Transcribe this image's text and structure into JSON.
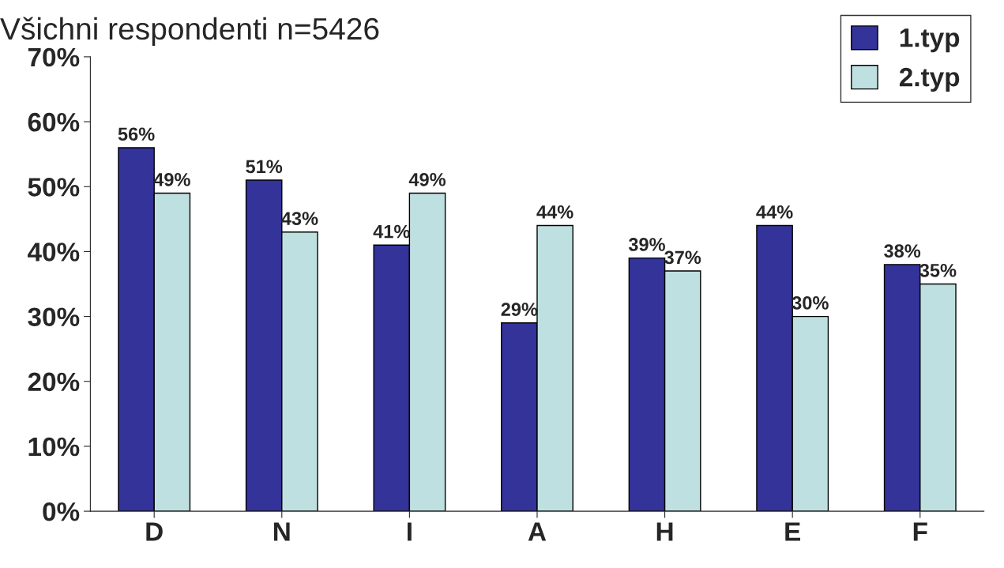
{
  "chart_data": {
    "type": "bar",
    "title": "Všichni respondenti n=5426",
    "categories": [
      "D",
      "N",
      "I",
      "A",
      "H",
      "E",
      "F"
    ],
    "series": [
      {
        "name": "1.typ",
        "color": "#333399",
        "values": [
          56,
          51,
          41,
          29,
          39,
          44,
          38
        ]
      },
      {
        "name": "2.typ",
        "color": "#bfe0e0",
        "values": [
          49,
          43,
          49,
          44,
          37,
          30,
          35
        ]
      }
    ],
    "ylim": [
      0,
      70
    ],
    "yticks": [
      {
        "value": 0,
        "label": "0%"
      },
      {
        "value": 10,
        "label": "10%"
      },
      {
        "value": 20,
        "label": "20%"
      },
      {
        "value": 30,
        "label": "30%"
      },
      {
        "value": 40,
        "label": "40%"
      },
      {
        "value": 50,
        "label": "50%"
      },
      {
        "value": 60,
        "label": "60%"
      },
      {
        "value": 70,
        "label": "70%"
      }
    ],
    "value_labels": [
      [
        "56%",
        "51%",
        "41%",
        "29%",
        "39%",
        "44%",
        "38%"
      ],
      [
        "49%",
        "43%",
        "49%",
        "44%",
        "37%",
        "30%",
        "35%"
      ]
    ],
    "legend": "top right",
    "grid": false
  }
}
